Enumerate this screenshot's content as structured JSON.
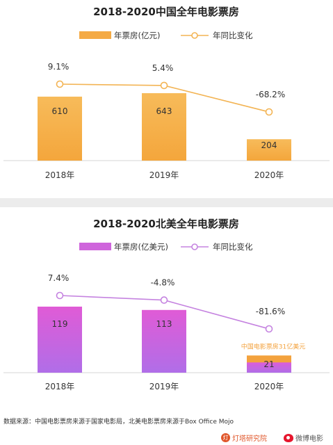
{
  "chart_data": [
    {
      "type": "bar",
      "title": "2018-2020中国全年电影票房",
      "categories": [
        "2018年",
        "2019年",
        "2020年"
      ],
      "series": [
        {
          "name": "年票房(亿元)",
          "type": "bar",
          "values": [
            610,
            643,
            204
          ],
          "labels": [
            "610",
            "643",
            "204"
          ]
        },
        {
          "name": "年同比变化",
          "type": "line",
          "values": [
            9.1,
            5.4,
            -68.2
          ],
          "labels": [
            "9.1%",
            "5.4%",
            "-68.2%"
          ]
        }
      ],
      "colors": {
        "bar_top": "#f7bb5a",
        "bar_bottom": "#f4a63c",
        "line": "#f3b454",
        "marker_fill": "#ffffff"
      }
    },
    {
      "type": "bar",
      "title": "2018-2020北美全年电影票房",
      "categories": [
        "2018年",
        "2019年",
        "2020年"
      ],
      "series": [
        {
          "name": "年票房(亿美元)",
          "type": "bar",
          "values": [
            119,
            113,
            21
          ],
          "labels": [
            "119",
            "113",
            "21"
          ]
        },
        {
          "name": "年同比变化",
          "type": "line",
          "values": [
            7.4,
            -4.8,
            -81.6
          ],
          "labels": [
            "7.4%",
            "-4.8%",
            "-81.6%"
          ]
        }
      ],
      "annotation": {
        "text": "中国电影票房31亿美元",
        "value": 31,
        "category": "2020年"
      },
      "colors": {
        "bar_top": "#e05bd6",
        "bar_bottom": "#b06ee8",
        "line": "#c583e0",
        "marker_fill": "#ffffff",
        "annotation": "#f3a23d"
      }
    }
  ],
  "footer": {
    "source": "数据来源：中国电影票房来源于国家电影局，北美电影票房来源于Box Office Mojo",
    "logo_left": "灯塔研究院",
    "logo_right": "微博电影",
    "logo_left_mark": "灯"
  }
}
